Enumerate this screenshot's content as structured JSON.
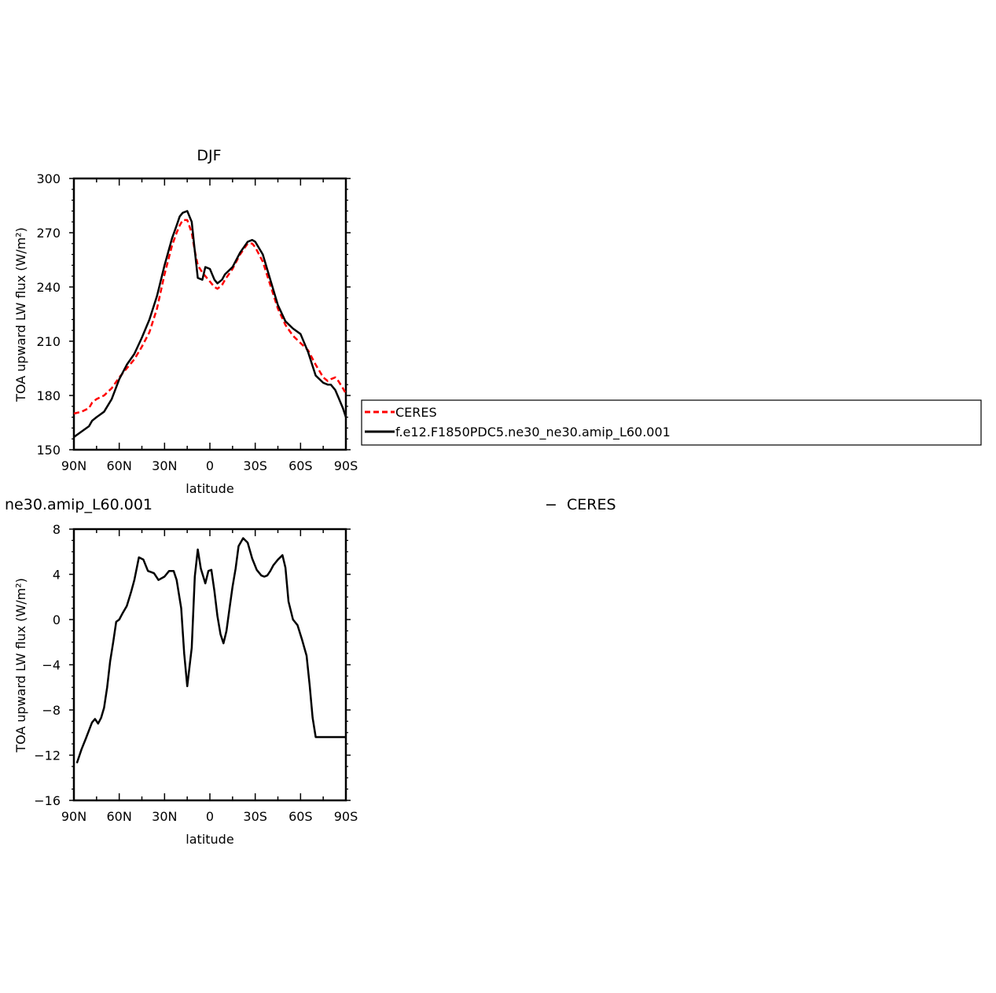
{
  "chart_data": [
    {
      "type": "line",
      "title": "DJF",
      "xlabel": "latitude",
      "ylabel": "TOA upward LW flux (W/m²)",
      "xlim": [
        90,
        -90
      ],
      "ylim": [
        150,
        300
      ],
      "x_ticks": [
        90,
        60,
        30,
        0,
        -30,
        -60,
        -90
      ],
      "x_tick_labels": [
        "90N",
        "60N",
        "30N",
        "0",
        "30S",
        "60S",
        "90S"
      ],
      "y_ticks": [
        150,
        180,
        210,
        240,
        270,
        300
      ],
      "y_tick_labels": [
        "150",
        "180",
        "210",
        "240",
        "270",
        "300"
      ],
      "grid": false,
      "legend_position": "right",
      "series": [
        {
          "name": "CERES",
          "color": "#ff0000",
          "style": "dashed",
          "x": [
            90,
            85,
            80,
            78,
            75,
            70,
            65,
            60,
            55,
            50,
            45,
            40,
            35,
            30,
            25,
            22,
            20,
            18,
            15,
            12,
            10,
            8,
            5,
            3,
            0,
            -3,
            -5,
            -8,
            -10,
            -15,
            -20,
            -25,
            -28,
            -30,
            -35,
            -40,
            -45,
            -50,
            -55,
            -60,
            -65,
            -70,
            -75,
            -78,
            -80,
            -83,
            -85,
            -88,
            -90
          ],
          "values": [
            170,
            171,
            173,
            176,
            178,
            180,
            184,
            190,
            195,
            200,
            207,
            215,
            228,
            247,
            263,
            270,
            274,
            277,
            277,
            270,
            260,
            252,
            248,
            246,
            243,
            240,
            239,
            241,
            244,
            250,
            258,
            264,
            264,
            262,
            254,
            241,
            228,
            219,
            213,
            209,
            205,
            197,
            190,
            188,
            189,
            190,
            188,
            184,
            181
          ]
        },
        {
          "name": "f.e12.F1850PDC5.ne30_ne30.amip_L60.001",
          "color": "#000000",
          "style": "solid",
          "x": [
            90,
            85,
            80,
            78,
            75,
            70,
            65,
            60,
            55,
            50,
            45,
            40,
            35,
            30,
            25,
            22,
            20,
            18,
            15,
            12,
            10,
            8,
            5,
            3,
            0,
            -3,
            -5,
            -8,
            -10,
            -15,
            -20,
            -25,
            -28,
            -30,
            -35,
            -40,
            -45,
            -50,
            -55,
            -60,
            -65,
            -70,
            -75,
            -78,
            -80,
            -83,
            -85,
            -88,
            -90
          ],
          "values": [
            157,
            160,
            163,
            166,
            168,
            171,
            178,
            189,
            197,
            203,
            212,
            222,
            235,
            252,
            267,
            274,
            279,
            281,
            282,
            276,
            260,
            245,
            244,
            251,
            250,
            244,
            242,
            244,
            247,
            251,
            259,
            265,
            266,
            265,
            258,
            244,
            230,
            221,
            217,
            214,
            204,
            191,
            187,
            186,
            186,
            183,
            179,
            173,
            168
          ]
        }
      ]
    },
    {
      "type": "line",
      "title": "ne30.amip_L60.001  −  CERES",
      "title_left": "ne30.amip_L60.001",
      "title_right": "−  CERES",
      "xlabel": "latitude",
      "ylabel": "TOA upward LW flux (W/m²)",
      "xlim": [
        90,
        -90
      ],
      "ylim": [
        -16,
        8
      ],
      "x_ticks": [
        90,
        60,
        30,
        0,
        -30,
        -60,
        -90
      ],
      "x_tick_labels": [
        "90N",
        "60N",
        "30N",
        "0",
        "30S",
        "60S",
        "90S"
      ],
      "y_ticks": [
        -16,
        -12,
        -8,
        -4,
        0,
        4,
        8
      ],
      "y_tick_labels": [
        "−16",
        "−12",
        "−8",
        "−4",
        "0",
        "4",
        "8"
      ],
      "grid": false,
      "series": [
        {
          "color": "#000000",
          "style": "solid",
          "x": [
            88,
            85,
            82,
            80,
            78,
            76,
            74,
            72,
            70,
            68,
            66,
            64,
            62,
            60,
            58,
            55,
            52,
            50,
            47,
            44,
            41,
            39,
            37,
            34,
            30,
            27,
            24,
            22,
            19,
            17,
            15,
            12,
            10,
            8,
            6,
            3,
            1,
            -1,
            -3,
            -5,
            -7,
            -9,
            -11,
            -13,
            -15,
            -17,
            -19,
            -22,
            -25,
            -28,
            -31,
            -34,
            -36,
            -38,
            -40,
            -42,
            -45,
            -48,
            -50,
            -52,
            -55,
            -58,
            -61,
            -64,
            -66,
            -68,
            -70,
            -72,
            -74,
            -76,
            -78,
            -81,
            -84,
            -87,
            -90
          ],
          "values": [
            -12.7,
            -11.5,
            -10.5,
            -9.8,
            -9.1,
            -8.8,
            -9.2,
            -8.7,
            -7.8,
            -6,
            -3.7,
            -2,
            -0.2,
            0,
            0.5,
            1.2,
            2.5,
            3.5,
            5.5,
            5.3,
            4.3,
            4.2,
            4.1,
            3.5,
            3.8,
            4.3,
            4.3,
            3.5,
            1,
            -3,
            -5.9,
            -2.5,
            3.8,
            6.2,
            4.5,
            3.2,
            4.3,
            4.4,
            2.5,
            0.3,
            -1.3,
            -2.1,
            -1,
            1,
            2.9,
            4.5,
            6.5,
            7.2,
            6.8,
            5.4,
            4.4,
            3.9,
            3.8,
            3.9,
            4.3,
            4.8,
            5.3,
            5.7,
            4.6,
            1.6,
            0,
            -0.5,
            -1.8,
            -3.2,
            -5.8,
            -8.7,
            -10.4,
            -10.4,
            -10.4,
            -10.4,
            -10.4,
            -10.4,
            -10.4,
            -10.4,
            -10.4
          ]
        }
      ]
    }
  ]
}
